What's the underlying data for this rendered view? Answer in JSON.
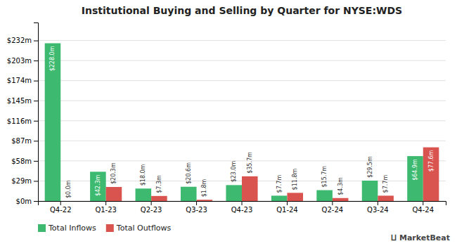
{
  "chart_data": {
    "type": "bar",
    "title": "Institutional Buying and Selling by Quarter for NYSE:WDS",
    "categories": [
      "Q4-22",
      "Q1-23",
      "Q2-23",
      "Q3-23",
      "Q4-23",
      "Q1-24",
      "Q2-24",
      "Q3-24",
      "Q4-24"
    ],
    "series": [
      {
        "name": "Total Inflows",
        "color": "#3dba6f",
        "values": [
          228.0,
          42.3,
          18.0,
          20.6,
          23.0,
          7.7,
          15.7,
          29.5,
          64.9
        ],
        "value_labels": [
          "$228.0m",
          "$42.3m",
          "$18.0m",
          "$20.6m",
          "$23.0m",
          "$7.7m",
          "$15.7m",
          "$29.5m",
          "$64.9m"
        ]
      },
      {
        "name": "Total Outflows",
        "color": "#d9534f",
        "values": [
          0.0,
          20.3,
          7.3,
          1.8,
          35.7,
          11.8,
          4.3,
          7.7,
          77.6
        ],
        "value_labels": [
          "$0.0m",
          "$20.3m",
          "$7.3m",
          "$1.8m",
          "$35.7m",
          "$11.8m",
          "$4.3m",
          "$7.7m",
          "$77.6m"
        ]
      }
    ],
    "ylim": [
      0,
      258
    ],
    "yticks": [
      {
        "value": 0,
        "label": "$0m"
      },
      {
        "value": 29,
        "label": "$29m"
      },
      {
        "value": 58,
        "label": "$58m"
      },
      {
        "value": 87,
        "label": "$87m"
      },
      {
        "value": 116,
        "label": "$116m"
      },
      {
        "value": 145,
        "label": "$145m"
      },
      {
        "value": 174,
        "label": "$174m"
      },
      {
        "value": 203,
        "label": "$203m"
      },
      {
        "value": 232,
        "label": "$232m"
      }
    ],
    "grid": true,
    "data_labels": true,
    "legend": "lower left",
    "annotations": [
      "⨿ MarketBeat"
    ]
  }
}
